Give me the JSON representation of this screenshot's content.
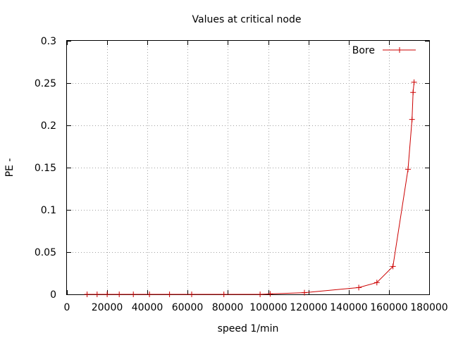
{
  "chart_data": {
    "type": "line",
    "title": "Values at critical node",
    "xlabel": "speed 1/min",
    "ylabel": "PE -",
    "xlim": [
      0,
      180000
    ],
    "ylim": [
      0,
      0.3
    ],
    "x_ticks": [
      0,
      20000,
      40000,
      60000,
      80000,
      100000,
      120000,
      140000,
      160000,
      180000
    ],
    "y_ticks": [
      0,
      0.05,
      0.1,
      0.15,
      0.2,
      0.25,
      0.3
    ],
    "x_tick_labels": [
      "0",
      "20000",
      "40000",
      "60000",
      "80000",
      "100000",
      "120000",
      "140000",
      "160000",
      "180000"
    ],
    "y_tick_labels": [
      "0",
      "0.05",
      "0.1",
      "0.15",
      "0.2",
      "0.25",
      "0.3"
    ],
    "grid": true,
    "legend_position": "top-right",
    "series": [
      {
        "name": "Bore",
        "color": "#cc0000",
        "marker": "plus",
        "x": [
          10000,
          15000,
          20000,
          26000,
          33000,
          41000,
          51000,
          62000,
          78000,
          96000,
          101000,
          118000,
          145000,
          154000,
          162000,
          169500,
          171500,
          172000,
          172500
        ],
        "y": [
          0,
          0,
          0,
          0,
          0,
          0,
          0,
          0,
          0,
          0,
          0.0005,
          0.002,
          0.008,
          0.014,
          0.033,
          0.148,
          0.207,
          0.239,
          0.251
        ]
      }
    ]
  }
}
